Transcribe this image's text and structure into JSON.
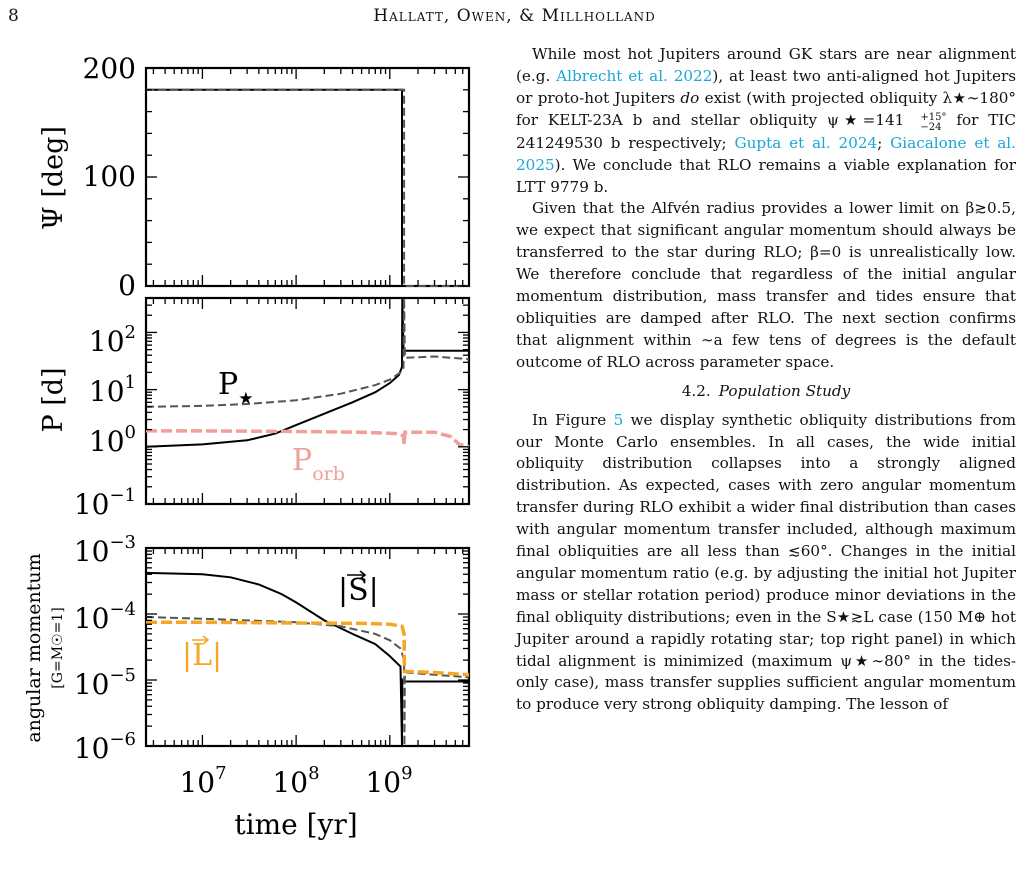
{
  "header": {
    "page_number": "8",
    "running_head": "Hallatt, Owen, & Millholland"
  },
  "figure": {
    "shared_x": {
      "label": "time [yr]",
      "ticks": [
        {
          "value": 10000000.0,
          "base": "10",
          "exp": "7"
        },
        {
          "value": 100000000.0,
          "base": "10",
          "exp": "8"
        },
        {
          "value": 1000000000.0,
          "base": "10",
          "exp": "9"
        }
      ]
    },
    "psi_panel": {
      "ylabel": "Ψ [deg]",
      "ticks": [
        {
          "value": 0,
          "label": "0"
        },
        {
          "value": 100,
          "label": "100"
        },
        {
          "value": 200,
          "label": "200"
        }
      ]
    },
    "period_panel": {
      "ylabel": "P [d]",
      "ticks": [
        {
          "value": 0.1,
          "base": "10",
          "exp": "−1"
        },
        {
          "value": 1,
          "base": "10",
          "exp": "0"
        },
        {
          "value": 10,
          "base": "10",
          "exp": "1"
        },
        {
          "value": 100,
          "base": "10",
          "exp": "2"
        }
      ],
      "label_star_main": "P",
      "label_star_sub": "★",
      "label_orb_main": "P",
      "label_orb_sub": "orb"
    },
    "angmom_panel": {
      "ylabel_main": "angular momentum",
      "ylabel_sub": "[G=M☉=1]",
      "ticks": [
        {
          "value": 1e-06,
          "base": "10",
          "exp": "−6"
        },
        {
          "value": 1e-05,
          "base": "10",
          "exp": "−5"
        },
        {
          "value": 0.0001,
          "base": "10",
          "exp": "−4"
        },
        {
          "value": 0.001,
          "base": "10",
          "exp": "−3"
        }
      ],
      "label_S": "|S|",
      "label_L": "|L|"
    },
    "colors": {
      "solid": "#000000",
      "dashed": "#555555",
      "orbit": "#f0a096",
      "L": "#f5a623"
    }
  },
  "chart_data": [
    {
      "type": "line",
      "title": "",
      "xlabel": "",
      "ylabel": "Ψ [deg]",
      "xscale": "log",
      "xlim": [
        2500000.0,
        7000000000.0
      ],
      "ylim": [
        0,
        200
      ],
      "series": [
        {
          "style": "solid",
          "x": [
            2500000.0,
            1350000000.0,
            1350000000.0,
            7000000000.0
          ],
          "y": [
            180,
            180,
            0,
            0
          ]
        },
        {
          "style": "dashed",
          "x": [
            2500000.0,
            1420000000.0,
            1420000000.0,
            7000000000.0
          ],
          "y": [
            180,
            180,
            0,
            0
          ]
        }
      ]
    },
    {
      "type": "line",
      "title": "",
      "xlabel": "",
      "ylabel": "P [d]",
      "xscale": "log",
      "yscale": "log",
      "xlim": [
        2500000.0,
        7000000000.0
      ],
      "ylim": [
        0.1,
        400
      ],
      "series": [
        {
          "name": "P★",
          "style": "solid",
          "x": [
            2500000.0,
            10000000.0,
            30000000.0,
            60000000.0,
            100000000.0,
            200000000.0,
            400000000.0,
            700000000.0,
            1000000000.0,
            1250000000.0,
            1350000000.0,
            1360000000.0,
            1400000000.0,
            1450000000.0,
            7000000000.0
          ],
          "y": [
            1.0,
            1.1,
            1.3,
            1.7,
            2.4,
            3.8,
            6.0,
            9.0,
            13.0,
            18.0,
            25,
            400,
            50,
            48,
            48
          ]
        },
        {
          "style": "dashed",
          "x": [
            2500000.0,
            10000000.0,
            30000000.0,
            100000000.0,
            300000000.0,
            700000000.0,
            1000000000.0,
            1300000000.0,
            1400000000.0,
            1420000000.0,
            1450000000.0,
            3000000000.0,
            7000000000.0
          ],
          "y": [
            5.0,
            5.2,
            5.6,
            6.5,
            8.5,
            12,
            15,
            20,
            24,
            400,
            36,
            38,
            34
          ]
        },
        {
          "name": "Porb",
          "style": "dashed-thick",
          "x": [
            2500000.0,
            10000000.0,
            100000000.0,
            500000000.0,
            1200000000.0,
            1400000000.0,
            1420000000.0,
            1450000000.0,
            3000000000.0,
            4500000000.0,
            5500000000.0,
            7000000000.0
          ],
          "y": [
            1.9,
            1.9,
            1.85,
            1.8,
            1.7,
            1.55,
            1.1,
            1.8,
            1.8,
            1.5,
            1.1,
            1.0
          ]
        }
      ]
    },
    {
      "type": "line",
      "title": "",
      "xlabel": "time [yr]",
      "ylabel": "angular momentum [G=M☉=1]",
      "xscale": "log",
      "yscale": "log",
      "xlim": [
        2500000.0,
        7000000000.0
      ],
      "ylim": [
        1e-06,
        0.001
      ],
      "series": [
        {
          "name": "|S|",
          "style": "solid",
          "x": [
            2500000.0,
            10000000.0,
            20000000.0,
            40000000.0,
            70000000.0,
            100000000.0,
            200000000.0,
            400000000.0,
            700000000.0,
            1000000000.0,
            1300000000.0,
            1350000000.0,
            1360000000.0,
            1400000000.0,
            7000000000.0
          ],
          "y": [
            0.00042,
            0.0004,
            0.00036,
            0.00028,
            0.0002,
            0.00015,
            8e-05,
            5e-05,
            3.5e-05,
            2.3e-05,
            1.6e-05,
            1e-06,
            1e-05,
            9.5e-06,
            9.5e-06
          ]
        },
        {
          "style": "dashed",
          "x": [
            2500000.0,
            10000000.0,
            30000000.0,
            100000000.0,
            300000000.0,
            700000000.0,
            1000000000.0,
            1300000000.0,
            1420000000.0,
            1430000000.0,
            1450000000.0,
            7000000000.0
          ],
          "y": [
            9e-05,
            8.5e-05,
            8e-05,
            7.5e-05,
            6.5e-05,
            5e-05,
            4e-05,
            3e-05,
            2e-05,
            1e-06,
            1.3e-05,
            1.1e-05
          ]
        },
        {
          "name": "|L|",
          "style": "dashed-thick",
          "x": [
            2500000.0,
            10000000.0,
            100000000.0,
            500000000.0,
            1000000000.0,
            1350000000.0,
            1420000000.0,
            1430000000.0,
            3000000000.0,
            7000000000.0
          ],
          "y": [
            7.5e-05,
            7.5e-05,
            7.3e-05,
            7.2e-05,
            7e-05,
            6.5e-05,
            5e-05,
            1.35e-05,
            1.3e-05,
            1.2e-05
          ]
        }
      ]
    }
  ],
  "text": {
    "para1": {
      "p1": "While most hot Jupiters around GK stars are near alignment (e.g. ",
      "c1": "Albrecht et al. 2022",
      "p2": "), at least two anti-aligned hot Jupiters or proto-hot Jupiters ",
      "em": "do",
      "p3": " exist (with projected obliquity λ★∼180° for KELT-23A b and stellar obliquity ψ★=141",
      "sup": "+15°",
      "sub": "−24",
      "p4": " for TIC 241249530 b respectively; ",
      "c2": "Gupta et al. 2024",
      "p5": "; ",
      "c3": "Giacalone et al. 2025",
      "p6": "). We conclude that RLO remains a viable explanation for LTT 9779 b."
    },
    "para2": "Given that the Alfvén radius provides a lower limit on β≳0.5, we expect that significant angular momentum should always be transferred to the star during RLO; β=0 is unrealistically low. We therefore conclude that regardless of the initial angular momentum distribution, mass transfer and tides ensure that obliquities are damped after RLO. The next section confirms that alignment within ∼a few tens of degrees is the default outcome of RLO across parameter space.",
    "section": {
      "number": "4.2.",
      "title": "Population Study"
    },
    "para3": {
      "p1": "In Figure ",
      "ref": "5",
      "p2": " we display synthetic obliquity distributions from our Monte Carlo ensembles. In all cases, the wide initial obliquity distribution collapses into a strongly aligned distribution. As expected, cases with zero angular momentum transfer during RLO exhibit a wider final distribution than cases with angular momentum transfer included, although maximum final obliquities are all less than ≲60°. Changes in the initial angular momentum ratio (e.g. by adjusting the initial hot Jupiter mass or stellar rotation period) produce minor deviations in the final obliquity distributions; even in the S★≳L case (150 M⊕ hot Jupiter around a rapidly rotating star; top right panel) in which tidal alignment is minimized (maximum ψ★∼80° in the tides-only case), mass transfer supplies sufficient angular momentum to produce very strong obliquity damping. The lesson of"
    }
  }
}
